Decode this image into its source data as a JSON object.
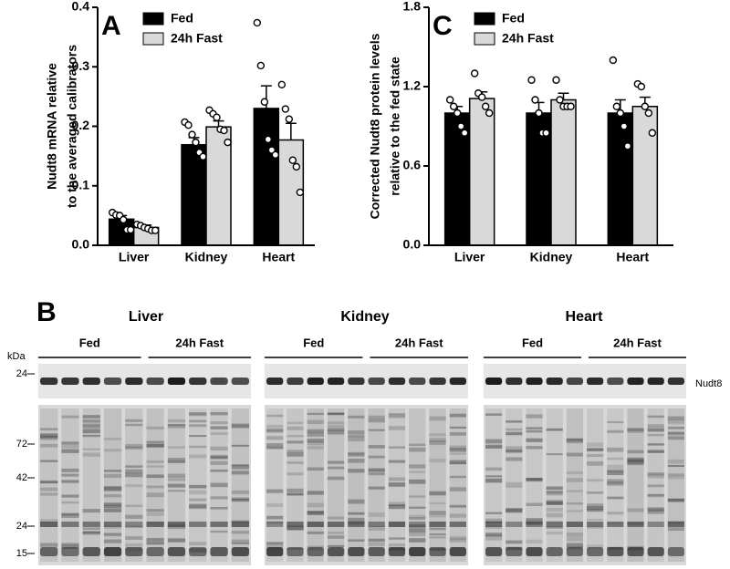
{
  "chart_data": [
    {
      "type": "bar",
      "panel_label": "A",
      "ylabel": [
        "Nudt8 mRNA relative",
        "to the averaged calibrators"
      ],
      "categories": [
        "Liver",
        "Kidney",
        "Heart"
      ],
      "series": [
        {
          "name": "Fed",
          "color": "#000000",
          "values": [
            0.044,
            0.169,
            0.23
          ],
          "errors": [
            0.006,
            0.012,
            0.038
          ],
          "points": [
            [
              0.055,
              0.051,
              0.05,
              0.043,
              0.026,
              0.026
            ],
            [
              0.207,
              0.202,
              0.186,
              0.173,
              0.156,
              0.149
            ],
            [
              0.374,
              0.302,
              0.241,
              0.178,
              0.16,
              0.152
            ]
          ]
        },
        {
          "name": "24h Fast",
          "color": "#d9d9d9",
          "values": [
            0.03,
            0.199,
            0.177
          ],
          "errors": [
            0.004,
            0.01,
            0.028
          ],
          "points": [
            [
              0.035,
              0.033,
              0.03,
              0.028,
              0.025,
              0.025
            ],
            [
              0.227,
              0.221,
              0.215,
              0.195,
              0.193,
              0.173
            ],
            [
              0.27,
              0.229,
              0.212,
              0.143,
              0.132,
              0.089
            ]
          ]
        }
      ],
      "ylim": [
        0,
        0.4
      ],
      "yticks": [
        {
          "value": 0,
          "label": "0.0"
        },
        0.1,
        0.2,
        0.3,
        0.4
      ]
    },
    {
      "type": "bar",
      "panel_label": "C",
      "ylabel": [
        "Corrected Nudt8 protein levels",
        "relative to the fed state"
      ],
      "categories": [
        "Liver",
        "Kidney",
        "Heart"
      ],
      "series": [
        {
          "name": "Fed",
          "color": "#000000",
          "values": [
            1.0,
            1.0,
            1.0
          ],
          "errors": [
            0.05,
            0.08,
            0.1
          ],
          "points": [
            [
              1.1,
              1.05,
              1.0,
              0.9,
              0.85
            ],
            [
              1.25,
              1.1,
              1.0,
              0.85,
              0.85
            ],
            [
              1.4,
              1.05,
              1.0,
              0.9,
              0.75
            ]
          ]
        },
        {
          "name": "24h Fast",
          "color": "#d9d9d9",
          "values": [
            1.11,
            1.1,
            1.05
          ],
          "errors": [
            0.05,
            0.05,
            0.07
          ],
          "points": [
            [
              1.3,
              1.15,
              1.12,
              1.05,
              1.0
            ],
            [
              1.25,
              1.1,
              1.05,
              1.05,
              1.05
            ],
            [
              1.22,
              1.2,
              1.05,
              1.0,
              0.85
            ]
          ]
        }
      ],
      "ylim": [
        0,
        1.8
      ],
      "yticks": [
        {
          "value": 0,
          "label": "0.0"
        },
        {
          "value": 0.6,
          "label": "0.6"
        },
        {
          "value": 1.2,
          "label": "1.2"
        },
        {
          "value": 1.8,
          "label": "1.8"
        }
      ]
    }
  ],
  "blot": {
    "panel_label": "B",
    "unit": "kDa",
    "band_label": "Nudt8",
    "groups": [
      {
        "name": "Liver",
        "conditions": [
          "Fed",
          "24h Fast"
        ]
      },
      {
        "name": "Kidney",
        "conditions": [
          "Fed",
          "24h Fast"
        ]
      },
      {
        "name": "Heart",
        "conditions": [
          "Fed",
          "24h Fast"
        ]
      }
    ],
    "markers": [
      "24",
      "72",
      "42",
      "24",
      "15"
    ]
  }
}
